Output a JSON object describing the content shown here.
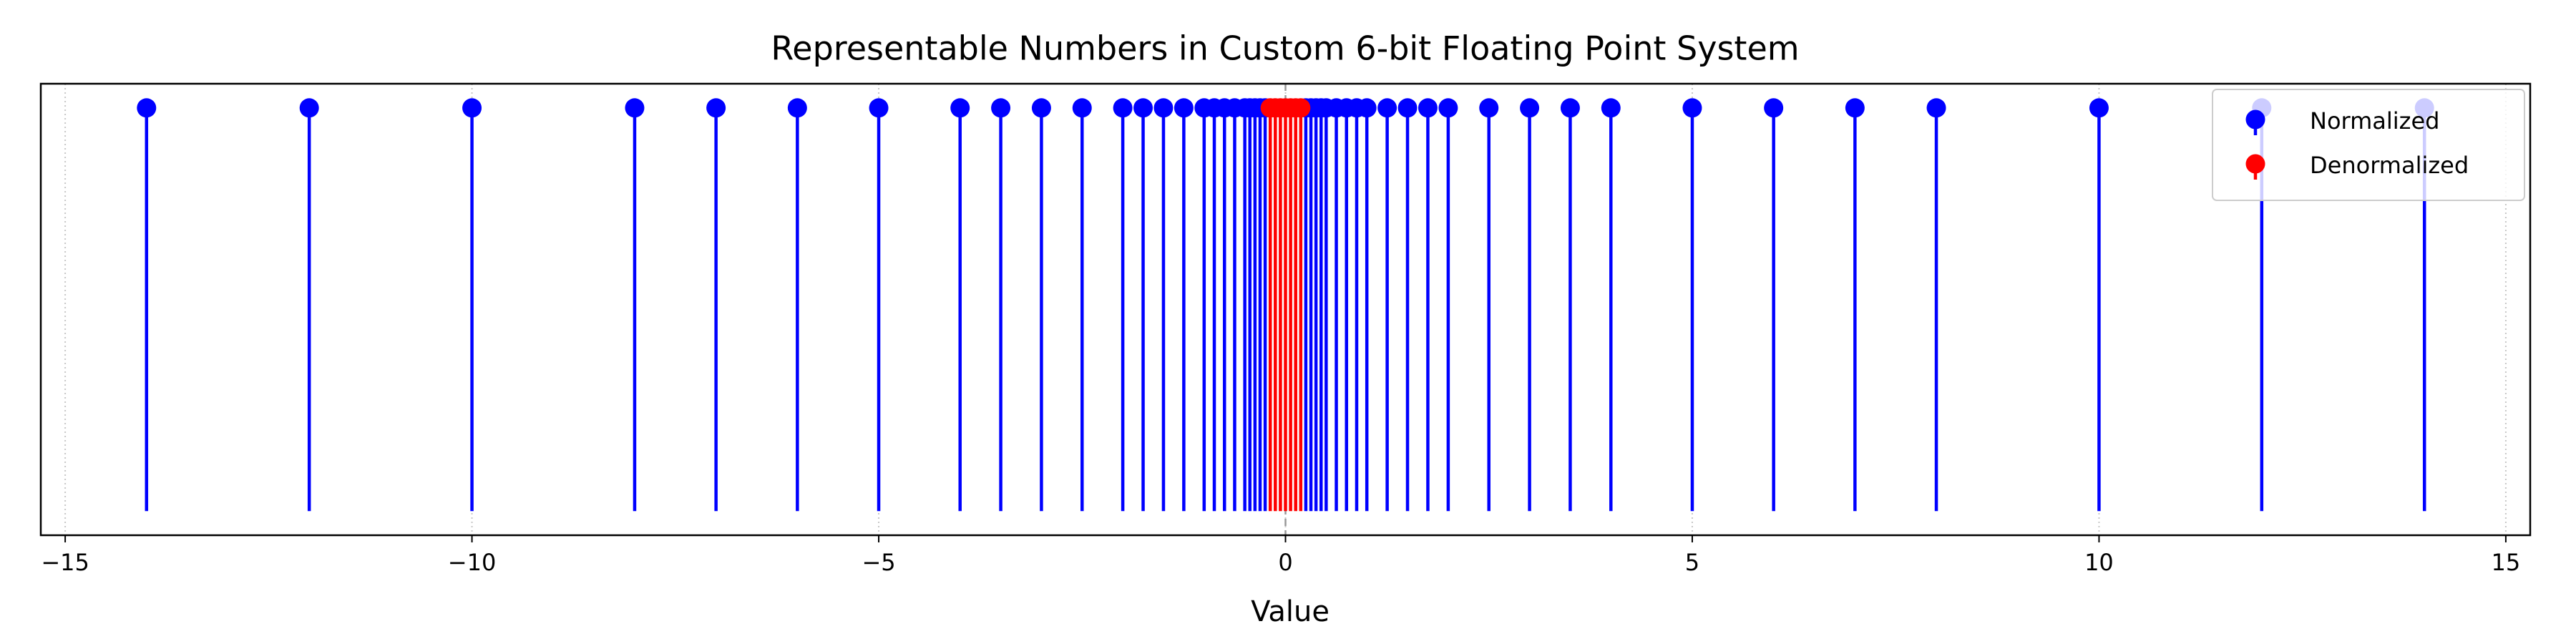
{
  "chart_data": {
    "type": "stem",
    "title": "Representable Numbers in Custom 6-bit Floating Point System",
    "x_label": "Value",
    "series": [
      {
        "name": "Normalized",
        "color": "#0000ff",
        "x": [
          -14,
          -12,
          -10,
          -8,
          -7,
          -6,
          -5,
          -4,
          -3.5,
          -3,
          -2.5,
          -2,
          -1.75,
          -1.5,
          -1.25,
          -1,
          -0.875,
          -0.75,
          -0.625,
          -0.5,
          -0.4375,
          -0.375,
          -0.3125,
          -0.25,
          0.25,
          0.3125,
          0.375,
          0.4375,
          0.5,
          0.625,
          0.75,
          0.875,
          1,
          1.25,
          1.5,
          1.75,
          2,
          2.5,
          3,
          3.5,
          4,
          5,
          6,
          7,
          8,
          10,
          12,
          14
        ],
        "values": [
          1,
          1,
          1,
          1,
          1,
          1,
          1,
          1,
          1,
          1,
          1,
          1,
          1,
          1,
          1,
          1,
          1,
          1,
          1,
          1,
          1,
          1,
          1,
          1,
          1,
          1,
          1,
          1,
          1,
          1,
          1,
          1,
          1,
          1,
          1,
          1,
          1,
          1,
          1,
          1,
          1,
          1,
          1,
          1,
          1,
          1,
          1,
          1
        ]
      },
      {
        "name": "Denormalized",
        "color": "#ff0000",
        "x": [
          -0.1875,
          -0.125,
          -0.0625,
          0,
          0.0625,
          0.125,
          0.1875
        ],
        "values": [
          1,
          1,
          1,
          1,
          1,
          1,
          1
        ]
      }
    ],
    "xlim": [
      -15.3,
      15.3
    ],
    "xticks": [
      {
        "value": -15,
        "label": "−15"
      },
      {
        "value": -10,
        "label": "−10"
      },
      {
        "value": -5,
        "label": "−5"
      },
      0,
      5,
      10,
      15
    ],
    "ylim": [
      -0.06,
      1.06
    ],
    "grid": "x",
    "zero_line": true,
    "legend": "upper right"
  }
}
